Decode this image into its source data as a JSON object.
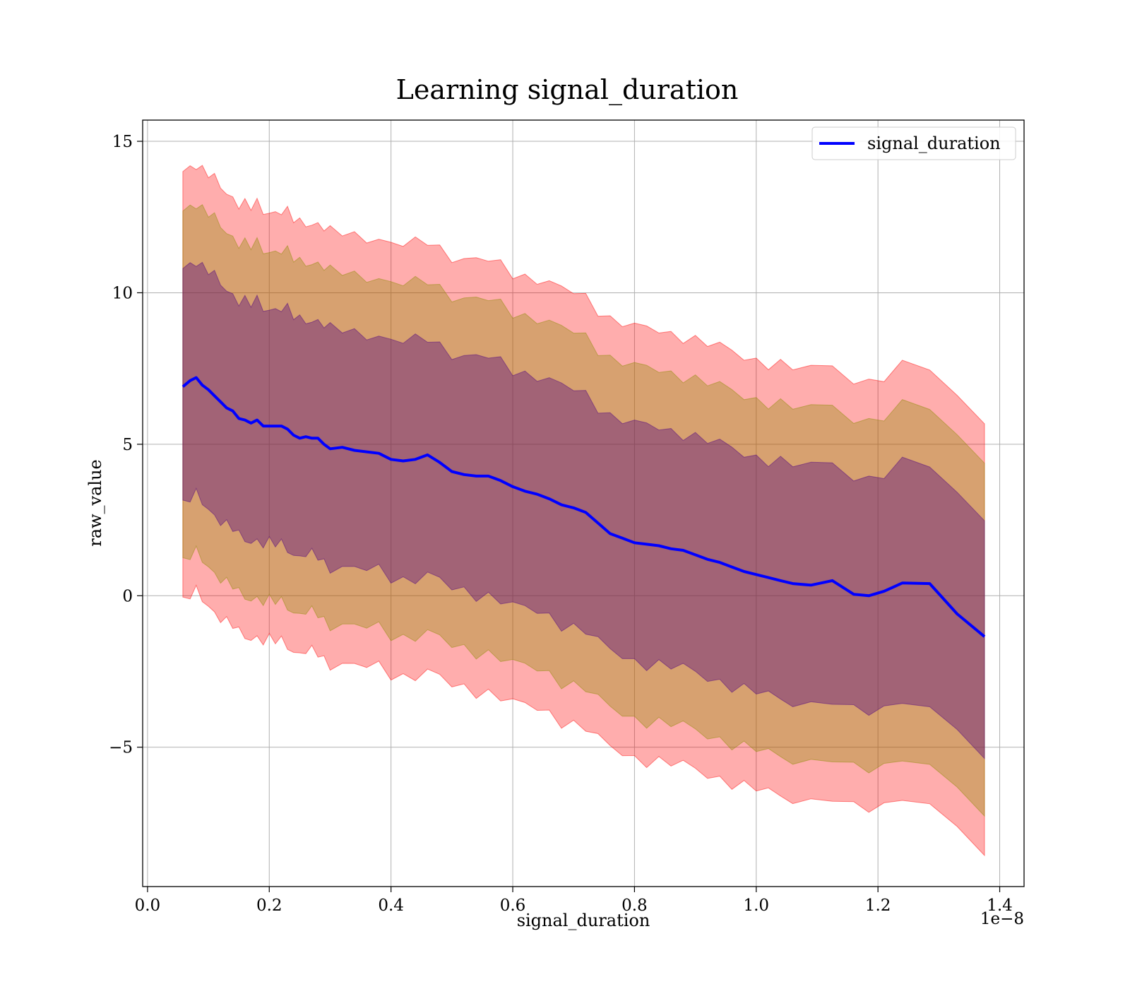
{
  "chart_data": {
    "type": "area",
    "title": "Learning signal_duration",
    "xlabel": "signal_duration",
    "ylabel": "raw_value",
    "x_offset_label": "1e−8",
    "x_scale": 1e-08,
    "xlim": [
      -0.008,
      1.44
    ],
    "ylim": [
      -9.6,
      15.7
    ],
    "xticks": [
      0.0,
      0.2,
      0.4,
      0.6,
      0.8,
      1.0,
      1.2,
      1.4
    ],
    "xtick_labels": [
      "0.0",
      "0.2",
      "0.4",
      "0.6",
      "0.8",
      "1.0",
      "1.2",
      "1.4"
    ],
    "yticks": [
      -5,
      0,
      5,
      10,
      15
    ],
    "ytick_labels": [
      "−5",
      "0",
      "5",
      "10",
      "15"
    ],
    "grid": true,
    "legend": {
      "placement": "top-right",
      "entries": [
        "signal_duration"
      ]
    },
    "colors": {
      "line": "#0000ff",
      "band_outer": "#ff0000",
      "band_middle": "#8b8b00",
      "band_inner": "#4b0082"
    },
    "x": [
      0.058,
      0.07,
      0.08,
      0.09,
      0.1,
      0.11,
      0.12,
      0.13,
      0.14,
      0.15,
      0.16,
      0.17,
      0.18,
      0.19,
      0.2,
      0.21,
      0.22,
      0.23,
      0.24,
      0.25,
      0.26,
      0.27,
      0.28,
      0.29,
      0.3,
      0.32,
      0.34,
      0.36,
      0.38,
      0.4,
      0.42,
      0.44,
      0.46,
      0.48,
      0.5,
      0.52,
      0.54,
      0.56,
      0.58,
      0.6,
      0.62,
      0.64,
      0.66,
      0.68,
      0.7,
      0.72,
      0.74,
      0.76,
      0.78,
      0.8,
      0.82,
      0.84,
      0.86,
      0.88,
      0.9,
      0.92,
      0.94,
      0.96,
      0.98,
      1.0,
      1.02,
      1.04,
      1.06,
      1.09,
      1.125,
      1.16,
      1.185,
      1.21,
      1.24,
      1.285,
      1.33,
      1.375
    ],
    "series": [
      {
        "name": "signal_duration",
        "values": [
          6.9,
          7.1,
          7.2,
          6.95,
          6.8,
          6.6,
          6.4,
          6.2,
          6.1,
          5.85,
          5.8,
          5.7,
          5.8,
          5.6,
          5.6,
          5.6,
          5.6,
          5.5,
          5.3,
          5.2,
          5.25,
          5.2,
          5.2,
          5.0,
          4.85,
          4.9,
          4.8,
          4.75,
          4.7,
          4.5,
          4.45,
          4.5,
          4.65,
          4.4,
          4.1,
          4.0,
          3.95,
          3.95,
          3.8,
          3.6,
          3.45,
          3.35,
          3.2,
          3.0,
          2.9,
          2.75,
          2.4,
          2.05,
          1.9,
          1.75,
          1.7,
          1.65,
          1.55,
          1.5,
          1.35,
          1.2,
          1.1,
          0.95,
          0.8,
          0.7,
          0.6,
          0.5,
          0.4,
          0.35,
          0.5,
          0.05,
          0.0,
          0.15,
          0.42,
          0.4,
          -0.6,
          -1.35
        ]
      }
    ],
    "bands": [
      {
        "level": "outer",
        "offset": 7.1
      },
      {
        "level": "middle",
        "offset": 5.8
      },
      {
        "level": "inner",
        "offset": 3.9
      }
    ]
  }
}
